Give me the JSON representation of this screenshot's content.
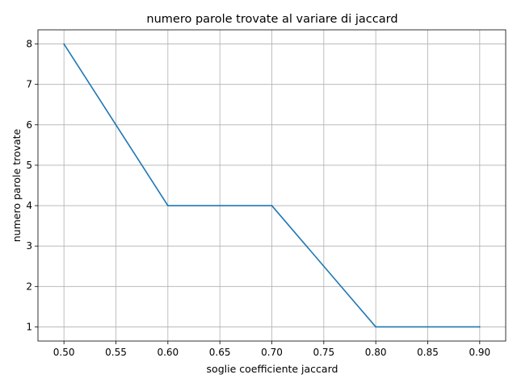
{
  "chart_data": {
    "type": "line",
    "title": "numero parole trovate al variare di jaccard",
    "xlabel": "soglie coefficiente jaccard",
    "ylabel": "numero parole trovate",
    "x": [
      0.5,
      0.6,
      0.7,
      0.8,
      0.9
    ],
    "series": [
      {
        "values": [
          8,
          4,
          4,
          1,
          1
        ],
        "color": "#1f77b4"
      }
    ],
    "xlim": [
      0.475,
      0.925
    ],
    "ylim": [
      0.65,
      8.35
    ],
    "xticks": [
      "0.50",
      "0.55",
      "0.60",
      "0.65",
      "0.70",
      "0.75",
      "0.80",
      "0.85",
      "0.90"
    ],
    "yticks": [
      "1",
      "2",
      "3",
      "4",
      "5",
      "6",
      "7",
      "8"
    ],
    "grid": true
  }
}
